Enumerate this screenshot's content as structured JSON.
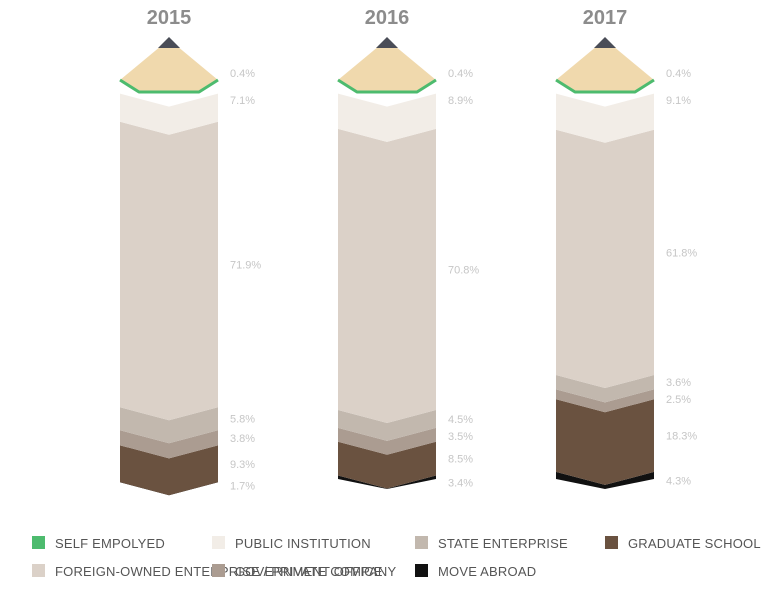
{
  "chart_data": {
    "type": "stacked-bar",
    "order_top_to_bottom": [
      "Self Empolyed",
      "Public Institution",
      "Foreign-Owned Enterprise / Private Company",
      "State Enterprise",
      "Government Office",
      "Graduate School",
      "Move Abroad"
    ],
    "legend": [
      {
        "key": "self",
        "label": "SELF EMPOLYED",
        "color": "#4dbb6e"
      },
      {
        "key": "public",
        "label": "PUBLIC INSTITUTION",
        "color": "#f2ede7"
      },
      {
        "key": "state",
        "label": "STATE ENTERPRISE",
        "color": "#c2b8ae"
      },
      {
        "key": "grad",
        "label": "GRADUATE SCHOOL",
        "color": "#6a5240"
      },
      {
        "key": "foreign",
        "label": "FOREIGN-OWNED ENTERPRISE / PRIVATE COMPANY",
        "color": "#dbd1c8"
      },
      {
        "key": "gov",
        "label": "GOVERNMENT OFFICE",
        "color": "#ab9c91"
      },
      {
        "key": "abroad",
        "label": "MOVE ABROAD",
        "color": "#111111"
      }
    ],
    "bars": [
      {
        "year": "2015",
        "segments": [
          {
            "key": "self",
            "value": 0.4,
            "label": "0.4%"
          },
          {
            "key": "public",
            "value": 7.1,
            "label": "7.1%"
          },
          {
            "key": "foreign",
            "value": 71.9,
            "label": "71.9%"
          },
          {
            "key": "state",
            "value": 5.8,
            "label": "5.8%"
          },
          {
            "key": "gov",
            "value": 3.8,
            "label": "3.8%"
          },
          {
            "key": "grad",
            "value": 9.3,
            "label": "9.3%"
          },
          {
            "key": "abroad",
            "value": 1.7,
            "label": "1.7%"
          }
        ]
      },
      {
        "year": "2016",
        "segments": [
          {
            "key": "self",
            "value": 0.4,
            "label": "0.4%"
          },
          {
            "key": "public",
            "value": 8.9,
            "label": "8.9%"
          },
          {
            "key": "foreign",
            "value": 70.8,
            "label": "70.8%"
          },
          {
            "key": "state",
            "value": 4.5,
            "label": "4.5%"
          },
          {
            "key": "gov",
            "value": 3.5,
            "label": "3.5%"
          },
          {
            "key": "grad",
            "value": 8.5,
            "label": "8.5%"
          },
          {
            "key": "abroad",
            "value": 3.4,
            "label": "3.4%"
          }
        ]
      },
      {
        "year": "2017",
        "segments": [
          {
            "key": "self",
            "value": 0.4,
            "label": "0.4%"
          },
          {
            "key": "public",
            "value": 9.1,
            "label": "9.1%"
          },
          {
            "key": "foreign",
            "value": 61.8,
            "label": "61.8%"
          },
          {
            "key": "state",
            "value": 3.6,
            "label": "3.6%"
          },
          {
            "key": "gov",
            "value": 2.5,
            "label": "2.5%"
          },
          {
            "key": "grad",
            "value": 18.3,
            "label": "18.3%"
          },
          {
            "key": "abroad",
            "value": 4.3,
            "label": "4.3%"
          }
        ]
      }
    ],
    "decor": {
      "tip_color": "#f0d9ad",
      "lead_color": "#4a4d57"
    }
  }
}
